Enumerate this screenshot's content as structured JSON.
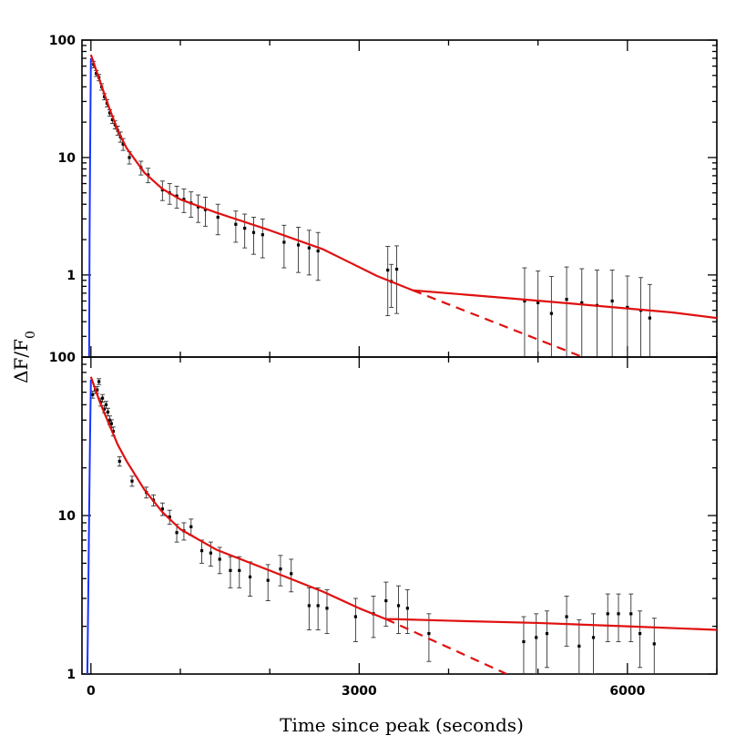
{
  "chart_data": [
    {
      "type": "scatter",
      "panel": "top",
      "xlabel": "Time since peak (seconds)",
      "ylabel": "ΔF/F0",
      "xlim": [
        -100,
        7000
      ],
      "ylim": [
        0.2,
        100
      ],
      "yscale": "log",
      "yticks": [
        1,
        10,
        100
      ],
      "ytick_labels": [
        "1",
        "10",
        "100"
      ],
      "rise": {
        "color": "#1a33ff",
        "x": [
          -20,
          -15,
          -10,
          -5,
          0
        ],
        "y": [
          0.2,
          2,
          8,
          25,
          70
        ]
      },
      "model": {
        "color": "#e01010",
        "x": [
          0,
          100,
          200,
          300,
          400,
          600,
          800,
          1000,
          1400,
          2000,
          2600,
          3200,
          3600,
          4500,
          5500,
          6500,
          7000
        ],
        "y": [
          75,
          45,
          27,
          17,
          12,
          7.4,
          5.4,
          4.4,
          3.4,
          2.4,
          1.65,
          0.98,
          0.74,
          0.65,
          0.56,
          0.48,
          0.43
        ]
      },
      "extrapolation": {
        "style": "dashed",
        "x": [
          3600,
          5500
        ],
        "y": [
          0.74,
          0.2
        ]
      },
      "points": {
        "x": [
          30,
          60,
          90,
          120,
          150,
          180,
          210,
          240,
          270,
          300,
          330,
          360,
          430,
          560,
          640,
          800,
          880,
          960,
          1040,
          1120,
          1200,
          1280,
          1420,
          1620,
          1720,
          1820,
          1920,
          2160,
          2320,
          2440,
          2540,
          3320,
          3360,
          3420,
          4850,
          5000,
          5150,
          5320,
          5490,
          5660,
          5830,
          6000,
          6150,
          6250
        ],
        "y": [
          62,
          52,
          48,
          40,
          33,
          29,
          24,
          21,
          19,
          17,
          15,
          13,
          10,
          8.2,
          7.1,
          5.3,
          5.0,
          4.7,
          4.4,
          4.1,
          3.8,
          3.6,
          3.1,
          2.7,
          2.5,
          2.3,
          2.2,
          1.9,
          1.8,
          1.7,
          1.6,
          1.1,
          0.88,
          1.12,
          0.6,
          0.58,
          0.47,
          0.62,
          0.58,
          0.55,
          0.6,
          0.53,
          0.5,
          0.43
        ],
        "err": [
          4,
          3,
          3,
          2.5,
          2,
          2,
          1.5,
          1.5,
          1.5,
          1.5,
          1.5,
          1.5,
          1.2,
          1.1,
          1.0,
          1.0,
          1.0,
          1.0,
          1.0,
          1.0,
          1.0,
          1.0,
          0.9,
          0.8,
          0.8,
          0.8,
          0.8,
          0.75,
          0.75,
          0.7,
          0.7,
          0.65,
          0.35,
          0.65,
          0.55,
          0.5,
          0.5,
          0.55,
          0.55,
          0.55,
          0.5,
          0.45,
          0.45,
          0.4
        ]
      }
    },
    {
      "type": "scatter",
      "panel": "bottom",
      "xlabel": "Time since peak (seconds)",
      "ylabel": "ΔF/F0",
      "xlim": [
        -100,
        7000
      ],
      "ylim": [
        1,
        100
      ],
      "yscale": "log",
      "yticks": [
        1,
        10,
        100
      ],
      "ytick_labels": [
        "1",
        "10",
        "100"
      ],
      "xticks": [
        0,
        3000,
        6000
      ],
      "xtick_labels": [
        "0",
        "3000",
        "6000"
      ],
      "rise": {
        "color": "#1a33ff",
        "x": [
          -40,
          -30,
          -20,
          -10,
          0
        ],
        "y": [
          1,
          3,
          10,
          30,
          72
        ]
      },
      "model": {
        "color": "#e01010",
        "x": [
          0,
          100,
          200,
          300,
          400,
          600,
          800,
          1000,
          1400,
          2000,
          2600,
          3000,
          3300,
          3400,
          4000,
          5000,
          6000,
          7000
        ],
        "y": [
          75,
          52,
          38,
          28,
          22,
          14.5,
          10.5,
          8.2,
          6.1,
          4.5,
          3.3,
          2.6,
          2.22,
          2.22,
          2.17,
          2.1,
          2.0,
          1.9
        ]
      },
      "extrapolation": {
        "style": "dashed",
        "x": [
          3300,
          4650
        ],
        "y": [
          2.22,
          1.0
        ]
      },
      "points": {
        "x": [
          20,
          50,
          70,
          90,
          110,
          130,
          150,
          170,
          190,
          210,
          230,
          250,
          320,
          460,
          620,
          700,
          800,
          880,
          960,
          1040,
          1120,
          1240,
          1340,
          1440,
          1560,
          1660,
          1780,
          1980,
          2120,
          2240,
          2440,
          2540,
          2640,
          2960,
          3160,
          3300,
          3440,
          3540,
          3780,
          4840,
          4980,
          5100,
          5320,
          5460,
          5620,
          5780,
          5900,
          6040,
          6140,
          6300
        ],
        "y": [
          58,
          62,
          62,
          70,
          52,
          55,
          47,
          50,
          45,
          40,
          38,
          34,
          22,
          16.5,
          14,
          12.5,
          11,
          9.8,
          7.8,
          8.0,
          8.5,
          6.0,
          5.8,
          5.3,
          4.5,
          4.5,
          4.1,
          3.9,
          4.6,
          4.3,
          2.7,
          2.7,
          2.6,
          2.3,
          2.4,
          2.9,
          2.7,
          2.6,
          1.8,
          1.6,
          1.7,
          1.8,
          2.3,
          1.5,
          1.7,
          2.4,
          2.4,
          2.4,
          1.8,
          1.55
        ],
        "err": [
          3,
          3,
          3,
          3,
          3,
          3,
          2.5,
          2.5,
          2.5,
          2.5,
          2.2,
          2.2,
          1.5,
          1.2,
          1.1,
          1.0,
          1.0,
          1.0,
          1.0,
          1.0,
          1.0,
          1.0,
          1.0,
          1.0,
          1.0,
          1.0,
          1.0,
          1.0,
          1.0,
          1.0,
          0.8,
          0.8,
          0.8,
          0.7,
          0.7,
          0.9,
          0.9,
          0.8,
          0.6,
          0.7,
          0.7,
          0.7,
          0.8,
          0.7,
          0.7,
          0.8,
          0.8,
          0.8,
          0.7,
          0.7
        ]
      }
    }
  ]
}
